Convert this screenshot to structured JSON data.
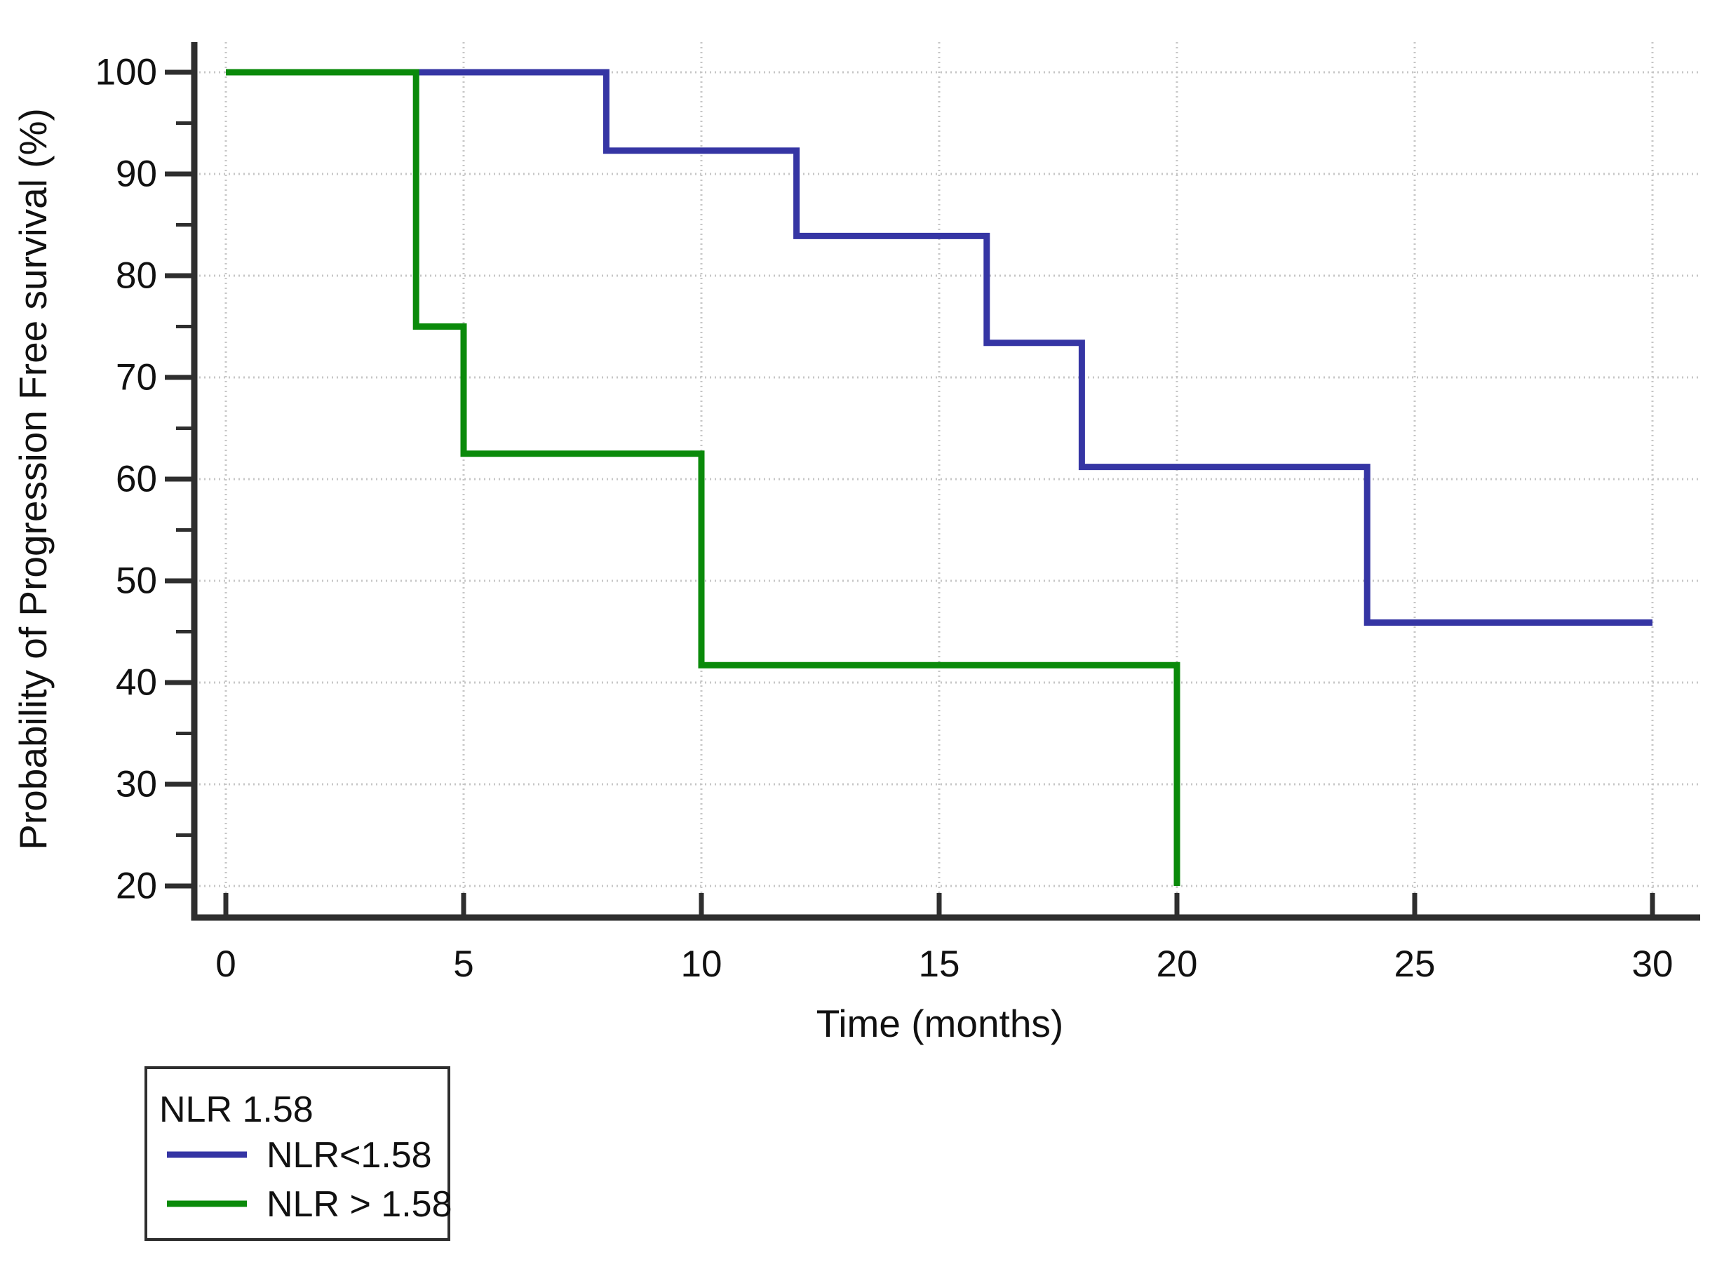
{
  "figure": {
    "y_axis": {
      "title": "Probability of Progression Free survival (%)",
      "tick_labels": [
        100,
        90,
        80,
        70,
        60,
        50,
        40,
        30,
        20
      ],
      "minor_ticks": [
        95,
        85,
        75,
        65,
        55,
        45,
        35,
        25
      ],
      "range": [
        20,
        100
      ]
    },
    "x_axis": {
      "title": "Time (months)",
      "tick_labels": [
        0,
        5,
        10,
        15,
        20,
        25,
        30
      ],
      "range": [
        0,
        30
      ]
    },
    "colors": {
      "blue_series": "#3535A4",
      "green_series": "#0A8A0A",
      "axis": "#2E2E2E",
      "gridline": "#C6C6C6",
      "text": "#111111",
      "background": "#FFFFFF"
    }
  },
  "chart_data": {
    "type": "line",
    "subtype": "kaplan-meier-step",
    "title": "",
    "xlabel": "Time (months)",
    "ylabel": "Probability of Progression Free survival (%)",
    "xlim": [
      0,
      30
    ],
    "ylim": [
      20,
      100
    ],
    "x_ticks": [
      0,
      5,
      10,
      15,
      20,
      25,
      30
    ],
    "y_ticks": [
      100,
      90,
      80,
      70,
      60,
      50,
      40,
      30,
      20
    ],
    "y_minor_ticks": [
      95,
      85,
      75,
      65,
      55,
      45,
      35,
      25
    ],
    "grid": "light dotted gridlines at every major tick, both axes",
    "legend_position": "boxed legend below plot, bottom-left",
    "legend_title": "NLR 1.58",
    "series": [
      {
        "name": "NLR<1.58",
        "color": "#3535A4",
        "steps": [
          {
            "t": 0,
            "v": 100
          },
          {
            "t": 8,
            "v": 92.3
          },
          {
            "t": 12,
            "v": 83.9
          },
          {
            "t": 16,
            "v": 73.4
          },
          {
            "t": 18,
            "v": 61.2
          },
          {
            "t": 24,
            "v": 45.9
          }
        ],
        "end_time": 30
      },
      {
        "name": "NLR > 1.58",
        "color": "#0A8A0A",
        "steps": [
          {
            "t": 0,
            "v": 100
          },
          {
            "t": 4,
            "v": 75
          },
          {
            "t": 5,
            "v": 62.5
          },
          {
            "t": 10,
            "v": 41.7
          },
          {
            "t": 20,
            "v": 20
          }
        ],
        "end_time": 20,
        "note": "final drop at t=20 is clipped at the y-axis minimum (20%); KM value just before clipping is about 20.8%"
      }
    ]
  }
}
